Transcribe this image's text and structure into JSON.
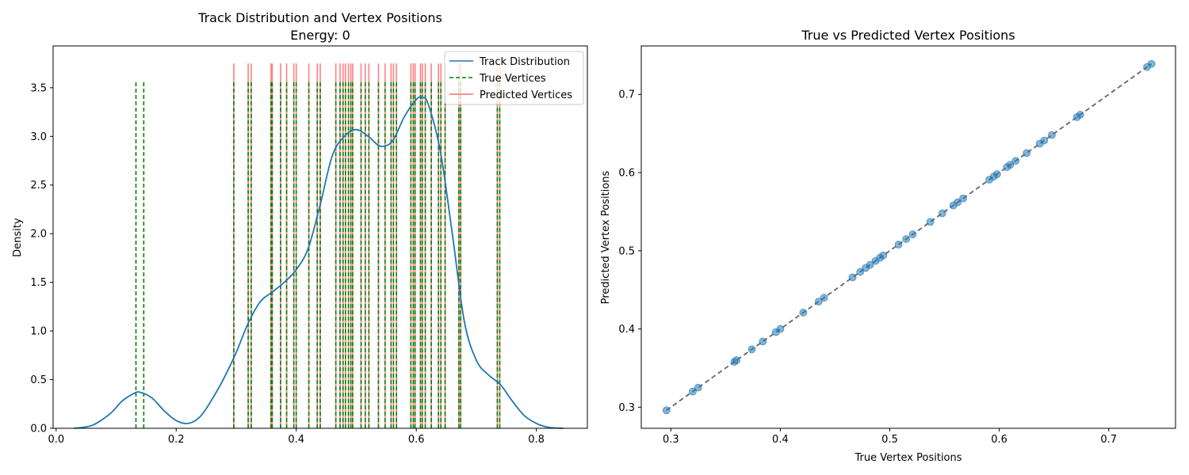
{
  "chart_data": [
    {
      "type": "line",
      "title": "Track Distribution and Vertex Positions",
      "subtitle": "Energy: 0",
      "xlabel": "",
      "ylabel": "Density",
      "xlim": [
        -0.005,
        0.885
      ],
      "ylim": [
        0,
        3.93
      ],
      "xticks": [
        0.0,
        0.2,
        0.4,
        0.6,
        0.8
      ],
      "xtick_labels": [
        "0.0",
        "0.2",
        "0.4",
        "0.6",
        "0.8"
      ],
      "yticks": [
        0.0,
        0.5,
        1.0,
        1.5,
        2.0,
        2.5,
        3.0,
        3.5
      ],
      "ytick_labels": [
        "0.0",
        "0.5",
        "1.0",
        "1.5",
        "2.0",
        "2.5",
        "3.0",
        "3.5"
      ],
      "grid": false,
      "legend_position": "top-right",
      "colors": {
        "track": "#1f77b4",
        "true_vertices": "#008000",
        "predicted_vertices": "#ff6b6b"
      },
      "series": [
        {
          "name": "Track Distribution",
          "kind": "density-curve",
          "x": [
            0.03,
            0.06,
            0.09,
            0.11,
            0.13,
            0.14,
            0.16,
            0.18,
            0.2,
            0.22,
            0.24,
            0.26,
            0.28,
            0.3,
            0.32,
            0.34,
            0.36,
            0.38,
            0.4,
            0.42,
            0.44,
            0.46,
            0.48,
            0.5,
            0.52,
            0.54,
            0.56,
            0.58,
            0.6,
            0.61,
            0.62,
            0.64,
            0.66,
            0.68,
            0.7,
            0.72,
            0.74,
            0.76,
            0.78,
            0.8,
            0.82,
            0.845
          ],
          "y": [
            0.0,
            0.03,
            0.15,
            0.28,
            0.36,
            0.37,
            0.31,
            0.18,
            0.08,
            0.05,
            0.12,
            0.3,
            0.52,
            0.78,
            1.08,
            1.3,
            1.4,
            1.5,
            1.63,
            1.85,
            2.3,
            2.8,
            3.0,
            3.07,
            3.0,
            2.9,
            2.95,
            3.2,
            3.38,
            3.4,
            3.33,
            2.85,
            2.0,
            1.1,
            0.7,
            0.55,
            0.45,
            0.28,
            0.13,
            0.05,
            0.01,
            0.0
          ]
        },
        {
          "name": "True Vertices",
          "kind": "vertical-lines",
          "height": 3.58,
          "x": [
            0.133,
            0.146,
            0.296,
            0.32,
            0.325,
            0.358,
            0.36,
            0.374,
            0.384,
            0.396,
            0.4,
            0.421,
            0.435,
            0.44,
            0.466,
            0.473,
            0.478,
            0.482,
            0.487,
            0.491,
            0.494,
            0.508,
            0.515,
            0.521,
            0.537,
            0.548,
            0.558,
            0.562,
            0.567,
            0.591,
            0.595,
            0.598,
            0.607,
            0.61,
            0.615,
            0.625,
            0.637,
            0.641,
            0.648,
            0.671,
            0.674,
            0.735,
            0.739
          ]
        },
        {
          "name": "Predicted Vertices",
          "kind": "vertical-lines",
          "height": 3.75,
          "x": [
            0.296,
            0.32,
            0.325,
            0.358,
            0.36,
            0.374,
            0.384,
            0.396,
            0.4,
            0.421,
            0.435,
            0.44,
            0.466,
            0.473,
            0.478,
            0.482,
            0.487,
            0.491,
            0.494,
            0.508,
            0.515,
            0.521,
            0.537,
            0.548,
            0.558,
            0.562,
            0.567,
            0.591,
            0.595,
            0.598,
            0.607,
            0.61,
            0.615,
            0.625,
            0.637,
            0.641,
            0.648,
            0.671,
            0.674,
            0.735,
            0.739
          ]
        }
      ]
    },
    {
      "type": "scatter",
      "title": "True vs Predicted Vertex Positions",
      "xlabel": "True Vertex Positions",
      "ylabel": "Predicted Vertex Positions",
      "xlim": [
        0.273,
        0.761
      ],
      "ylim": [
        0.273,
        0.762
      ],
      "xticks": [
        0.3,
        0.4,
        0.5,
        0.6,
        0.7
      ],
      "xtick_labels": [
        "0.3",
        "0.4",
        "0.5",
        "0.6",
        "0.7"
      ],
      "yticks": [
        0.3,
        0.4,
        0.5,
        0.6,
        0.7
      ],
      "ytick_labels": [
        "0.3",
        "0.4",
        "0.5",
        "0.6",
        "0.7"
      ],
      "grid": false,
      "colors": {
        "points": "#1f77b4",
        "reference_line": "#555555"
      },
      "reference_line": {
        "style": "dashed",
        "from": [
          0.296,
          0.296
        ],
        "to": [
          0.739,
          0.739
        ]
      },
      "series": [
        {
          "kind": "points",
          "x": [
            0.296,
            0.32,
            0.325,
            0.358,
            0.36,
            0.374,
            0.384,
            0.396,
            0.4,
            0.421,
            0.435,
            0.44,
            0.466,
            0.473,
            0.478,
            0.482,
            0.487,
            0.491,
            0.494,
            0.508,
            0.515,
            0.521,
            0.537,
            0.548,
            0.558,
            0.562,
            0.567,
            0.591,
            0.595,
            0.598,
            0.607,
            0.61,
            0.615,
            0.625,
            0.637,
            0.641,
            0.648,
            0.671,
            0.674,
            0.735,
            0.739
          ],
          "y": [
            0.296,
            0.32,
            0.325,
            0.358,
            0.36,
            0.374,
            0.384,
            0.396,
            0.4,
            0.421,
            0.435,
            0.44,
            0.466,
            0.473,
            0.478,
            0.482,
            0.487,
            0.491,
            0.494,
            0.508,
            0.515,
            0.521,
            0.537,
            0.548,
            0.558,
            0.562,
            0.567,
            0.591,
            0.595,
            0.598,
            0.607,
            0.61,
            0.615,
            0.625,
            0.637,
            0.641,
            0.648,
            0.671,
            0.674,
            0.735,
            0.739
          ]
        }
      ]
    }
  ]
}
